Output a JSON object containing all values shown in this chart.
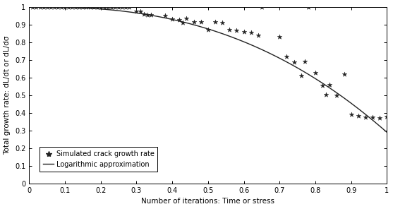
{
  "scatter_x": [
    0.01,
    0.02,
    0.03,
    0.04,
    0.05,
    0.06,
    0.07,
    0.08,
    0.09,
    0.1,
    0.11,
    0.12,
    0.13,
    0.14,
    0.15,
    0.16,
    0.17,
    0.18,
    0.19,
    0.2,
    0.21,
    0.22,
    0.23,
    0.24,
    0.25,
    0.26,
    0.27,
    0.28,
    0.3,
    0.31,
    0.32,
    0.33,
    0.34,
    0.38,
    0.4,
    0.42,
    0.43,
    0.44,
    0.46,
    0.48,
    0.5,
    0.52,
    0.54,
    0.56,
    0.58,
    0.6,
    0.62,
    0.64,
    0.65,
    0.7,
    0.72,
    0.74,
    0.76,
    0.77,
    0.78,
    0.8,
    0.82,
    0.83,
    0.84,
    0.86,
    0.88,
    0.9,
    0.92,
    0.94,
    0.96,
    0.98,
    1.0
  ],
  "scatter_y": [
    1.0,
    1.0,
    1.0,
    1.0,
    1.0,
    1.0,
    1.0,
    1.0,
    1.0,
    1.0,
    1.0,
    1.0,
    1.0,
    1.0,
    1.0,
    1.0,
    1.0,
    1.0,
    1.0,
    1.0,
    1.0,
    1.0,
    1.0,
    1.0,
    1.0,
    1.0,
    1.0,
    1.0,
    0.975,
    0.975,
    0.96,
    0.955,
    0.955,
    0.95,
    0.93,
    0.925,
    0.91,
    0.935,
    0.915,
    0.915,
    0.87,
    0.915,
    0.91,
    0.87,
    0.865,
    0.86,
    0.855,
    0.84,
    1.0,
    0.83,
    0.72,
    0.685,
    0.61,
    0.69,
    1.0,
    0.625,
    0.555,
    0.505,
    0.56,
    0.5,
    0.62,
    0.39,
    0.385,
    0.375,
    0.375,
    0.37,
    0.38
  ],
  "curve_power": 2.5,
  "curve_scale": 0.71,
  "xlabel": "Number of iterations: Time or stress",
  "ylabel": "Total growth rate: dL/dt or dL/dσ",
  "xlim": [
    0,
    1.0
  ],
  "ylim": [
    0,
    1.0
  ],
  "xticks": [
    0,
    0.1,
    0.2,
    0.3,
    0.4,
    0.5,
    0.6,
    0.7,
    0.8,
    0.9,
    1
  ],
  "yticks": [
    0,
    0.1,
    0.2,
    0.3,
    0.4,
    0.5,
    0.6,
    0.7,
    0.8,
    0.9,
    1
  ],
  "scatter_color": "#222222",
  "curve_color": "#222222",
  "legend_scatter": "Simulated crack growth rate",
  "legend_curve": "Logarithmic approximation",
  "bg_color": "#ffffff",
  "marker_size": 5,
  "linewidth": 1.0,
  "legend_fontsize": 7,
  "axis_fontsize": 7.5,
  "tick_fontsize": 7
}
